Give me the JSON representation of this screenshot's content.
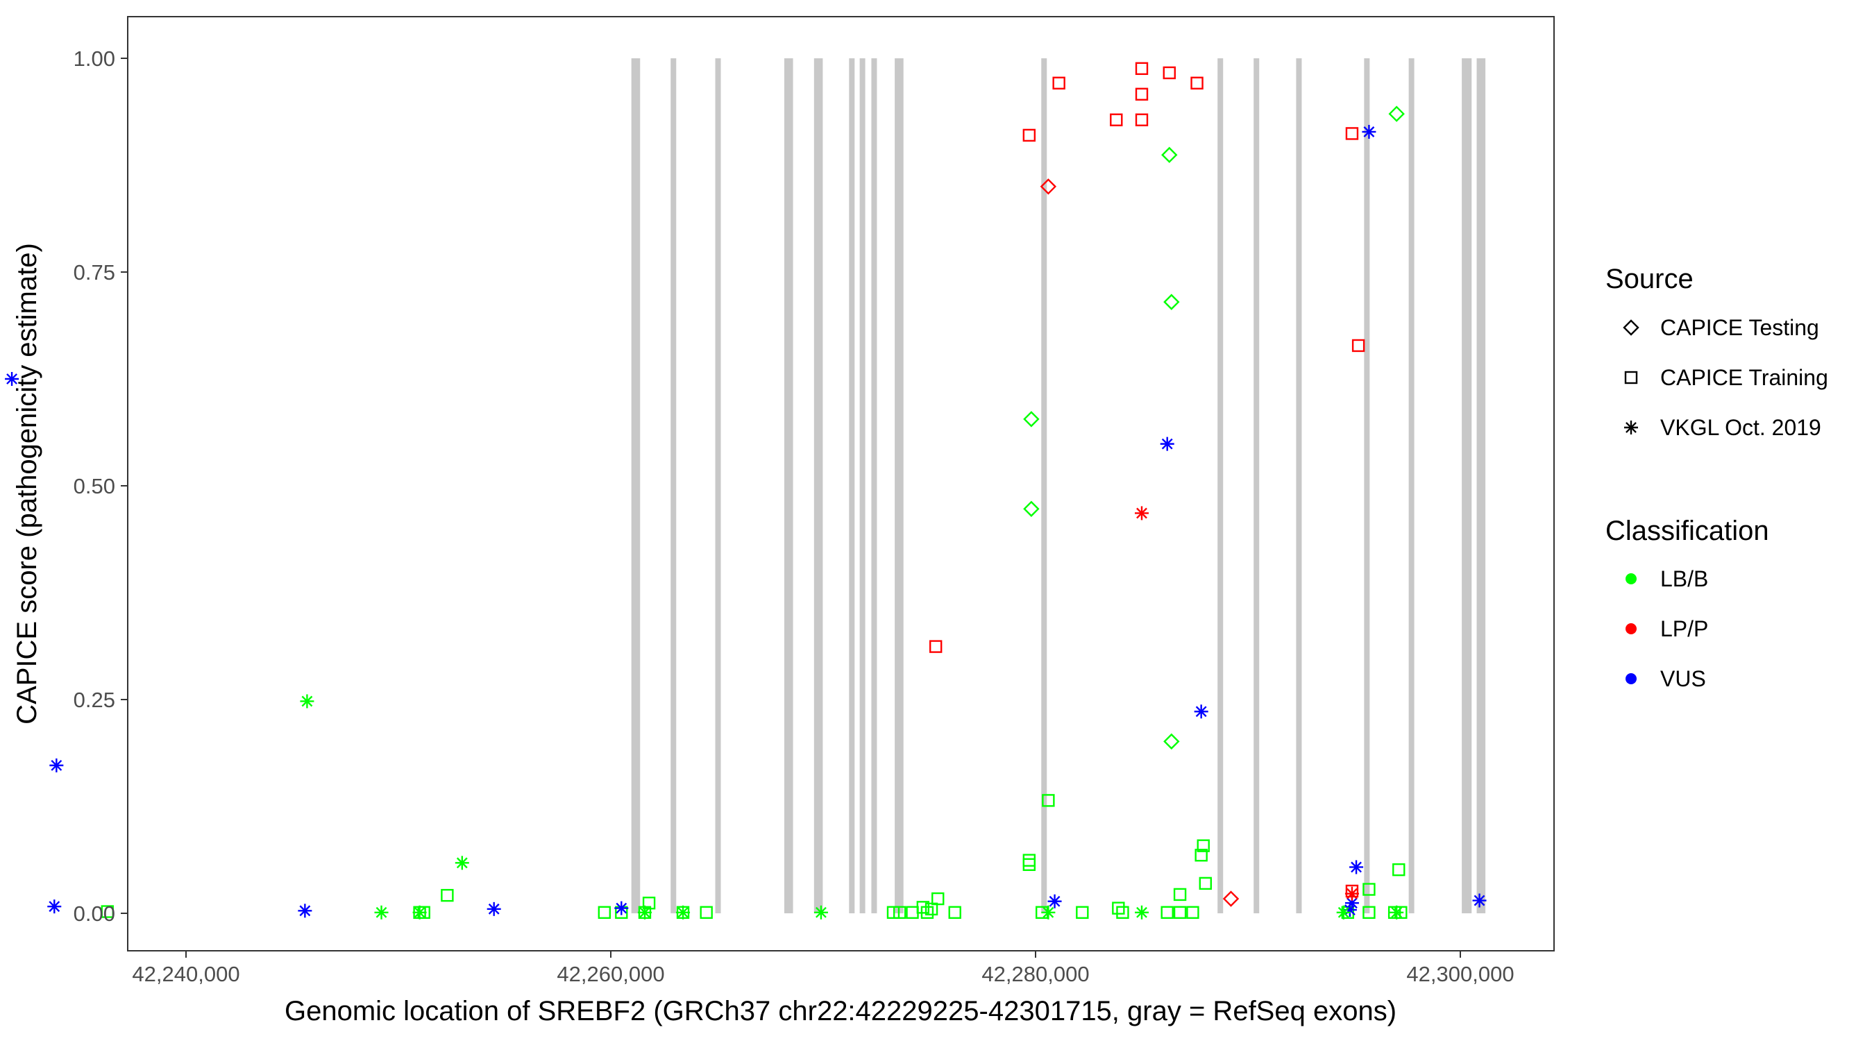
{
  "chart_data": {
    "type": "scatter",
    "xlabel": "Genomic location of SREBF2 (GRCh37 chr22:42229225-42301715, gray = RefSeq exons)",
    "ylabel": "CAPICE score (pathogenicity estimate)",
    "xlim": [
      42229225,
      42301715
    ],
    "ylim": [
      0,
      1
    ],
    "x_ticks": [
      42240000,
      42260000,
      42280000,
      42300000
    ],
    "x_tick_labels": [
      "42,240,000",
      "42,260,000",
      "42,280,000",
      "42,300,000"
    ],
    "y_ticks": [
      0,
      0.25,
      0.5,
      0.75,
      1
    ],
    "y_tick_labels": [
      "0.00",
      "0.25",
      "0.50",
      "0.75",
      "1.00"
    ],
    "grid": false,
    "legend_position": "right",
    "colors": {
      "exon": "#c8c8c8",
      "LB/B": "#00ff00",
      "LP/P": "#ff0000",
      "VUS": "#0000ff"
    },
    "exons": [
      42229225,
      42261100,
      42261250,
      42262950,
      42265050,
      42268300,
      42268450,
      42269700,
      42269850,
      42271350,
      42271850,
      42272400,
      42273500,
      42273650,
      42280400,
      42288700,
      42290400,
      42292400,
      42295600,
      42297700,
      42300200,
      42300400,
      42300900,
      42301050
    ],
    "legend": {
      "source_title": "Source",
      "source_items": [
        {
          "label": "CAPICE Testing",
          "shape": "diamond"
        },
        {
          "label": "CAPICE Training",
          "shape": "square"
        },
        {
          "label": "VKGL Oct. 2019",
          "shape": "asterisk"
        }
      ],
      "class_title": "Classification",
      "class_items": [
        {
          "label": "LB/B",
          "color": "#00ff00"
        },
        {
          "label": "LP/P",
          "color": "#ff0000"
        },
        {
          "label": "VUS",
          "color": "#0000ff"
        }
      ]
    },
    "series": [
      {
        "source": "CAPICE Testing",
        "classification": "LB/B",
        "shape": "diamond",
        "color": "#00ff00",
        "points": [
          [
            42297000,
            0.935
          ],
          [
            42286300,
            0.887
          ],
          [
            42286400,
            0.715
          ],
          [
            42279800,
            0.578
          ],
          [
            42279800,
            0.473
          ],
          [
            42286400,
            0.201
          ]
        ]
      },
      {
        "source": "CAPICE Testing",
        "classification": "LP/P",
        "shape": "diamond",
        "color": "#ff0000",
        "points": [
          [
            42280600,
            0.85
          ],
          [
            42289200,
            0.017
          ]
        ]
      },
      {
        "source": "CAPICE Training",
        "classification": "LP/P",
        "shape": "square",
        "color": "#ff0000",
        "points": [
          [
            42285000,
            0.988
          ],
          [
            42286300,
            0.983
          ],
          [
            42281100,
            0.971
          ],
          [
            42287600,
            0.971
          ],
          [
            42285000,
            0.958
          ],
          [
            42283800,
            0.928
          ],
          [
            42285000,
            0.928
          ],
          [
            42279700,
            0.91
          ],
          [
            42294900,
            0.912
          ],
          [
            42295200,
            0.664
          ],
          [
            42275300,
            0.312
          ],
          [
            42294900,
            0.026
          ]
        ]
      },
      {
        "source": "CAPICE Training",
        "classification": "LB/B",
        "shape": "square",
        "color": "#00ff00",
        "points": [
          [
            42280600,
            0.132
          ],
          [
            42287900,
            0.079
          ],
          [
            42287800,
            0.068
          ],
          [
            42279700,
            0.062
          ],
          [
            42279700,
            0.057
          ],
          [
            42297100,
            0.051
          ],
          [
            42288000,
            0.035
          ],
          [
            42295700,
            0.028
          ],
          [
            42286800,
            0.022
          ],
          [
            42252300,
            0.021
          ],
          [
            42275400,
            0.017
          ],
          [
            42261800,
            0.012
          ],
          [
            42274700,
            0.007
          ],
          [
            42283900,
            0.006
          ],
          [
            42275100,
            0.005
          ],
          [
            42236300,
            0.002
          ],
          [
            42251000,
            0.001
          ],
          [
            42251200,
            0.001
          ],
          [
            42259700,
            0.001
          ],
          [
            42260500,
            0.001
          ],
          [
            42261600,
            0.001
          ],
          [
            42263400,
            0.001
          ],
          [
            42264500,
            0.001
          ],
          [
            42273300,
            0.001
          ],
          [
            42273600,
            0.001
          ],
          [
            42274200,
            0.001
          ],
          [
            42274900,
            0.001
          ],
          [
            42276200,
            0.001
          ],
          [
            42280300,
            0.001
          ],
          [
            42282200,
            0.001
          ],
          [
            42284100,
            0.001
          ],
          [
            42286200,
            0.001
          ],
          [
            42286800,
            0.001
          ],
          [
            42287400,
            0.001
          ],
          [
            42294700,
            0.001
          ],
          [
            42295700,
            0.001
          ],
          [
            42296900,
            0.001
          ],
          [
            42297200,
            0.001
          ]
        ]
      },
      {
        "source": "VKGL Oct. 2019",
        "classification": "VUS",
        "shape": "asterisk",
        "color": "#0000ff",
        "points": [
          [
            42231800,
            0.625
          ],
          [
            42295700,
            0.914
          ],
          [
            42286200,
            0.549
          ],
          [
            42287800,
            0.236
          ],
          [
            42233900,
            0.173
          ],
          [
            42295100,
            0.054
          ],
          [
            42280900,
            0.014
          ],
          [
            42300900,
            0.015
          ],
          [
            42294900,
            0.012
          ],
          [
            42233800,
            0.008
          ],
          [
            42260500,
            0.006
          ],
          [
            42254500,
            0.005
          ],
          [
            42245600,
            0.003
          ],
          [
            42294800,
            0.004
          ]
        ]
      },
      {
        "source": "VKGL Oct. 2019",
        "classification": "LB/B",
        "shape": "asterisk",
        "color": "#00ff00",
        "points": [
          [
            42245700,
            0.248
          ],
          [
            42253000,
            0.059
          ],
          [
            42249200,
            0.001
          ],
          [
            42251000,
            0.001
          ],
          [
            42261600,
            0.001
          ],
          [
            42263400,
            0.001
          ],
          [
            42269900,
            0.001
          ],
          [
            42280600,
            0.001
          ],
          [
            42285000,
            0.001
          ],
          [
            42294500,
            0.001
          ],
          [
            42297000,
            0.001
          ]
        ]
      },
      {
        "source": "VKGL Oct. 2019",
        "classification": "LP/P",
        "shape": "asterisk",
        "color": "#ff0000",
        "points": [
          [
            42285000,
            0.468
          ],
          [
            42294900,
            0.023
          ]
        ]
      }
    ]
  }
}
